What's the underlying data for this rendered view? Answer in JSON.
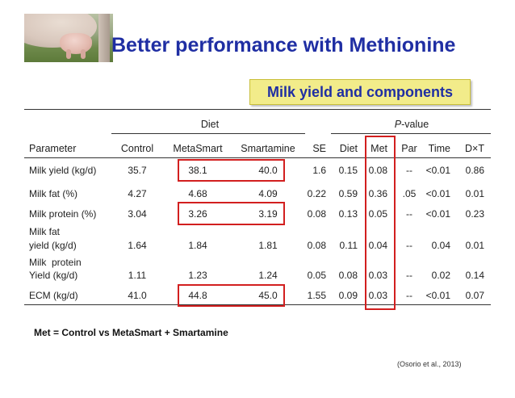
{
  "title": "Better performance with Methionine",
  "subtitle": "Milk yield and components",
  "table": {
    "group_diet": "Diet",
    "group_pvalue_italic": "P",
    "group_pvalue_rest": "-value",
    "columns": [
      "Parameter",
      "Control",
      "MetaSmart",
      "Smartamine",
      "SE",
      "Diet",
      "Met",
      "Par",
      "Time",
      "D×T"
    ],
    "rows": [
      {
        "param1": "Milk yield (kg/d)",
        "param2": "",
        "values": [
          "35.7",
          "38.1",
          "40.0",
          "1.6",
          "0.15",
          "0.08",
          "--",
          "<0.01",
          "0.86"
        ]
      },
      {
        "param1": "Milk fat (%)",
        "param2": "",
        "values": [
          "4.27",
          "4.68",
          "4.09",
          "0.22",
          "0.59",
          "0.36",
          ".05",
          "<0.01",
          "0.01"
        ]
      },
      {
        "param1": "Milk protein (%)",
        "param2": "",
        "values": [
          "3.04",
          "3.26",
          "3.19",
          "0.08",
          "0.13",
          "0.05",
          "--",
          "<0.01",
          "0.23"
        ]
      },
      {
        "param1": "Milk fat",
        "param2": "yield (kg/d)",
        "values": [
          "1.64",
          "1.84",
          "1.81",
          "0.08",
          "0.11",
          "0.04",
          "--",
          "0.04",
          "0.01"
        ]
      },
      {
        "param1": "Milk  protein",
        "param2": "Yield (kg/d)",
        "values": [
          "1.11",
          "1.23",
          "1.24",
          "0.05",
          "0.08",
          "0.03",
          "--",
          "0.02",
          "0.14"
        ]
      },
      {
        "param1": "ECM (kg/d)",
        "param2": "",
        "values": [
          "41.0",
          "44.8",
          "45.0",
          "1.55",
          "0.09",
          "0.03",
          "--",
          "<0.01",
          "0.07"
        ]
      }
    ]
  },
  "footnote": "Met = Control vs MetaSmart + Smartamine",
  "citation": "(Osorio et al., 2013)",
  "colors": {
    "title": "#1f2ea3",
    "highlight_box": "#d21f1f",
    "subtitle_bg": "#f2ec8a"
  }
}
